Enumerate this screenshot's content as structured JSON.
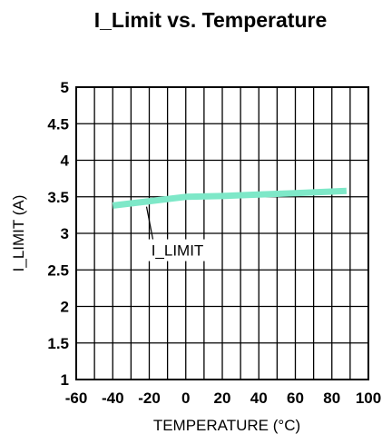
{
  "chart_data": {
    "type": "line",
    "title": "I_Limit vs. Temperature",
    "xlabel": "TEMPERATURE (°C)",
    "ylabel": "I_LIMIT (A)",
    "xlim": [
      -60,
      100
    ],
    "ylim": [
      1,
      5
    ],
    "x_ticks": [
      -60,
      -40,
      -20,
      0,
      20,
      40,
      60,
      80,
      100
    ],
    "x_tick_labels": [
      "-60",
      "-40",
      "-20",
      "0",
      "20",
      "40",
      "60",
      "80",
      "100"
    ],
    "y_ticks": [
      1,
      1.5,
      2,
      2.5,
      3,
      3.5,
      4,
      4.5,
      5
    ],
    "y_tick_labels": [
      "1",
      "1.5",
      "2",
      "2.5",
      "3",
      "3.5",
      "4",
      "4.5",
      "5"
    ],
    "grid": true,
    "minor_x_grid_step": 10,
    "series": [
      {
        "name": "I_LIMIT",
        "color": "#7ee8c8",
        "x": [
          -40,
          -20,
          0,
          20,
          40,
          60,
          88
        ],
        "y": [
          3.38,
          3.44,
          3.5,
          3.51,
          3.53,
          3.55,
          3.58
        ]
      }
    ],
    "annotations": [
      {
        "text": "I_LIMIT",
        "series": "I_LIMIT",
        "x": -20,
        "y": 3.44
      }
    ]
  }
}
